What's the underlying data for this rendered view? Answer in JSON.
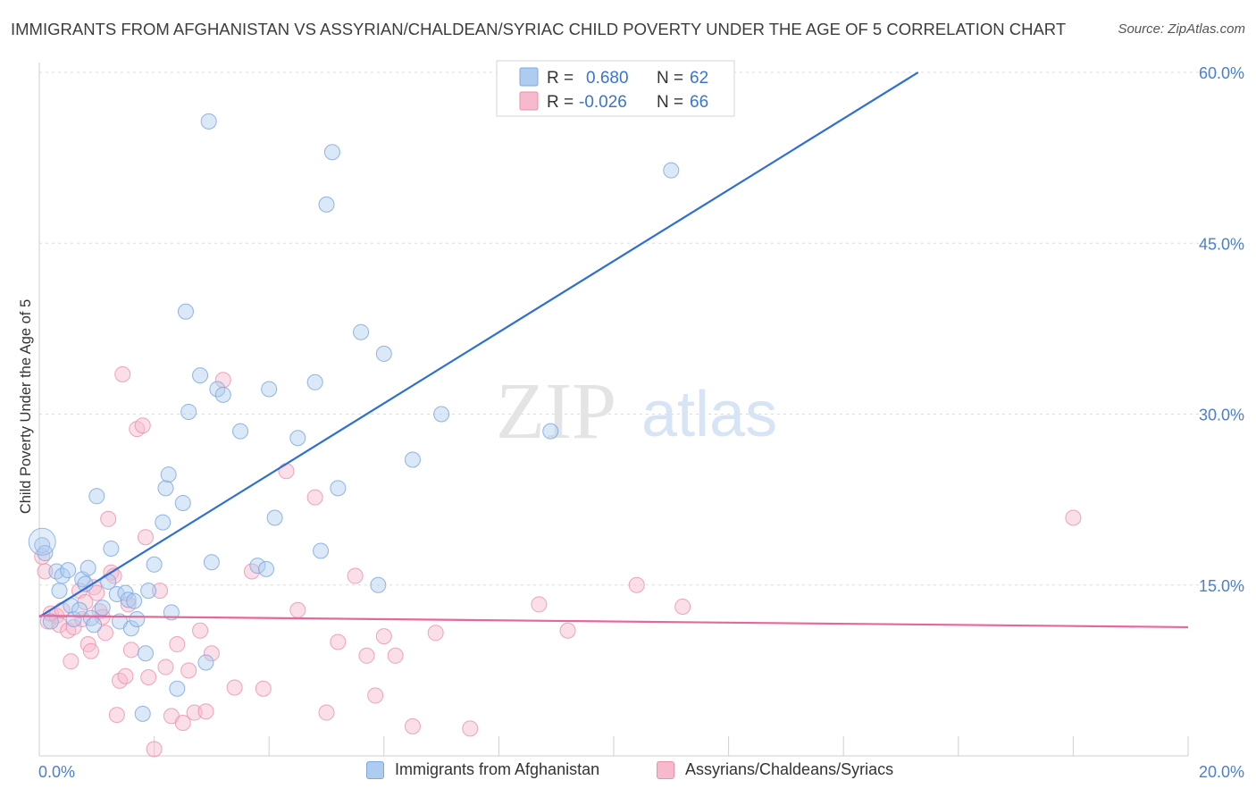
{
  "title": "IMMIGRANTS FROM AFGHANISTAN VS ASSYRIAN/CHALDEAN/SYRIAC CHILD POVERTY UNDER THE AGE OF 5 CORRELATION CHART",
  "source": "Source: ZipAtlas.com",
  "watermark": {
    "zip": "ZIP",
    "atlas": "atlas"
  },
  "colors": {
    "blue_fill": "#aecbf0",
    "blue_stroke": "#7fa8e0",
    "blue_line": "#2d6fd2",
    "pink_fill": "#f7b9cc",
    "pink_stroke": "#ec8fac",
    "pink_line": "#e8679a",
    "axis_text": "#4a7fd0",
    "grid": "#dcdcdc"
  },
  "legend": {
    "rows": [
      {
        "r_label": "R =",
        "r_value": "0.680",
        "n_label": "N =",
        "n_value": "62"
      },
      {
        "r_label": "R =",
        "r_value": "-0.026",
        "n_label": "N =",
        "n_value": "66"
      }
    ]
  },
  "bottom_legend": [
    "Immigrants from Afghanistan",
    "Assyrians/Chaldeans/Syriacs"
  ],
  "chart_data": {
    "type": "scatter",
    "xlabel": "",
    "ylabel": "Child Poverty Under the Age of 5",
    "xlim": [
      0,
      20
    ],
    "ylim": [
      0,
      60
    ],
    "x_tick_labels": [
      "0.0%",
      "20.0%"
    ],
    "y_ticks": [
      15,
      30,
      45,
      60
    ],
    "y_tick_labels": [
      "15.0%",
      "30.0%",
      "45.0%",
      "60.0%"
    ],
    "grid": "horizontal dashed",
    "legend_position": "top-center",
    "series": [
      {
        "name": "Immigrants from Afghanistan",
        "color": "#aecbf0",
        "r": 0.68,
        "n": 62,
        "trend": {
          "x": [
            0,
            15.3
          ],
          "y": [
            12.2,
            60
          ]
        },
        "points": [
          [
            0.05,
            18.5
          ],
          [
            0.1,
            17.8
          ],
          [
            0.2,
            11.8
          ],
          [
            0.3,
            16.2
          ],
          [
            0.35,
            14.5
          ],
          [
            0.4,
            15.8
          ],
          [
            0.5,
            16.3
          ],
          [
            0.55,
            13.2
          ],
          [
            0.6,
            12.0
          ],
          [
            0.7,
            12.8
          ],
          [
            0.75,
            15.5
          ],
          [
            0.8,
            15.1
          ],
          [
            0.85,
            16.5
          ],
          [
            0.9,
            12.1
          ],
          [
            0.95,
            11.5
          ],
          [
            1.0,
            22.8
          ],
          [
            1.1,
            13.0
          ],
          [
            1.2,
            15.3
          ],
          [
            1.25,
            18.2
          ],
          [
            1.35,
            14.2
          ],
          [
            1.4,
            11.8
          ],
          [
            1.5,
            14.3
          ],
          [
            1.55,
            13.7
          ],
          [
            1.6,
            11.2
          ],
          [
            1.65,
            13.6
          ],
          [
            1.7,
            12.0
          ],
          [
            1.8,
            3.7
          ],
          [
            1.85,
            9.0
          ],
          [
            1.9,
            14.5
          ],
          [
            2.0,
            16.8
          ],
          [
            2.15,
            20.5
          ],
          [
            2.2,
            23.5
          ],
          [
            2.25,
            24.7
          ],
          [
            2.3,
            12.6
          ],
          [
            2.4,
            5.9
          ],
          [
            2.5,
            22.2
          ],
          [
            2.55,
            39.0
          ],
          [
            2.6,
            30.2
          ],
          [
            2.8,
            33.4
          ],
          [
            2.9,
            8.2
          ],
          [
            2.95,
            55.7
          ],
          [
            3.0,
            17.0
          ],
          [
            3.1,
            32.2
          ],
          [
            3.2,
            31.7
          ],
          [
            3.5,
            28.5
          ],
          [
            3.8,
            16.7
          ],
          [
            3.95,
            16.4
          ],
          [
            4.0,
            32.2
          ],
          [
            4.1,
            20.9
          ],
          [
            4.5,
            27.9
          ],
          [
            4.8,
            32.8
          ],
          [
            4.9,
            18.0
          ],
          [
            5.0,
            48.4
          ],
          [
            5.1,
            53.0
          ],
          [
            5.2,
            23.5
          ],
          [
            5.6,
            37.2
          ],
          [
            5.9,
            15.0
          ],
          [
            6.0,
            35.3
          ],
          [
            6.5,
            26.0
          ],
          [
            7.0,
            30.0
          ],
          [
            8.9,
            28.5
          ],
          [
            11.0,
            51.4
          ]
        ]
      },
      {
        "name": "Assyrians/Chaldeans/Syriacs",
        "color": "#f7b9cc",
        "r": -0.026,
        "n": 66,
        "trend": {
          "x": [
            0,
            20
          ],
          "y": [
            12.3,
            11.3
          ]
        },
        "points": [
          [
            0.05,
            17.5
          ],
          [
            0.1,
            16.2
          ],
          [
            0.15,
            11.8
          ],
          [
            0.2,
            12.5
          ],
          [
            0.3,
            12.3
          ],
          [
            0.35,
            11.5
          ],
          [
            0.4,
            12.8
          ],
          [
            0.5,
            11.0
          ],
          [
            0.55,
            8.3
          ],
          [
            0.6,
            11.3
          ],
          [
            0.7,
            14.5
          ],
          [
            0.75,
            12.0
          ],
          [
            0.8,
            13.5
          ],
          [
            0.85,
            9.8
          ],
          [
            0.9,
            9.2
          ],
          [
            0.95,
            14.8
          ],
          [
            1.0,
            14.3
          ],
          [
            1.05,
            12.7
          ],
          [
            1.1,
            12.2
          ],
          [
            1.15,
            10.8
          ],
          [
            1.2,
            20.8
          ],
          [
            1.25,
            16.1
          ],
          [
            1.3,
            15.8
          ],
          [
            1.35,
            3.6
          ],
          [
            1.4,
            6.6
          ],
          [
            1.45,
            33.5
          ],
          [
            1.5,
            7.0
          ],
          [
            1.55,
            13.3
          ],
          [
            1.6,
            9.3
          ],
          [
            1.7,
            28.7
          ],
          [
            1.8,
            29.0
          ],
          [
            1.85,
            19.2
          ],
          [
            1.9,
            6.9
          ],
          [
            2.0,
            0.6
          ],
          [
            2.1,
            14.5
          ],
          [
            2.2,
            7.8
          ],
          [
            2.3,
            3.5
          ],
          [
            2.4,
            9.8
          ],
          [
            2.5,
            2.9
          ],
          [
            2.6,
            7.5
          ],
          [
            2.7,
            3.8
          ],
          [
            2.8,
            11.0
          ],
          [
            2.9,
            3.9
          ],
          [
            3.0,
            9.0
          ],
          [
            3.2,
            33.0
          ],
          [
            3.4,
            6.0
          ],
          [
            3.7,
            16.2
          ],
          [
            3.9,
            5.9
          ],
          [
            4.3,
            25.0
          ],
          [
            4.5,
            12.8
          ],
          [
            4.8,
            22.7
          ],
          [
            5.0,
            3.8
          ],
          [
            5.2,
            10.0
          ],
          [
            5.5,
            15.8
          ],
          [
            5.7,
            8.8
          ],
          [
            5.85,
            5.3
          ],
          [
            6.0,
            10.5
          ],
          [
            6.2,
            8.8
          ],
          [
            6.5,
            2.6
          ],
          [
            6.9,
            10.8
          ],
          [
            7.5,
            2.4
          ],
          [
            8.7,
            13.3
          ],
          [
            9.2,
            11.0
          ],
          [
            10.4,
            15.0
          ],
          [
            11.2,
            13.1
          ],
          [
            18.0,
            20.9
          ]
        ]
      }
    ]
  }
}
